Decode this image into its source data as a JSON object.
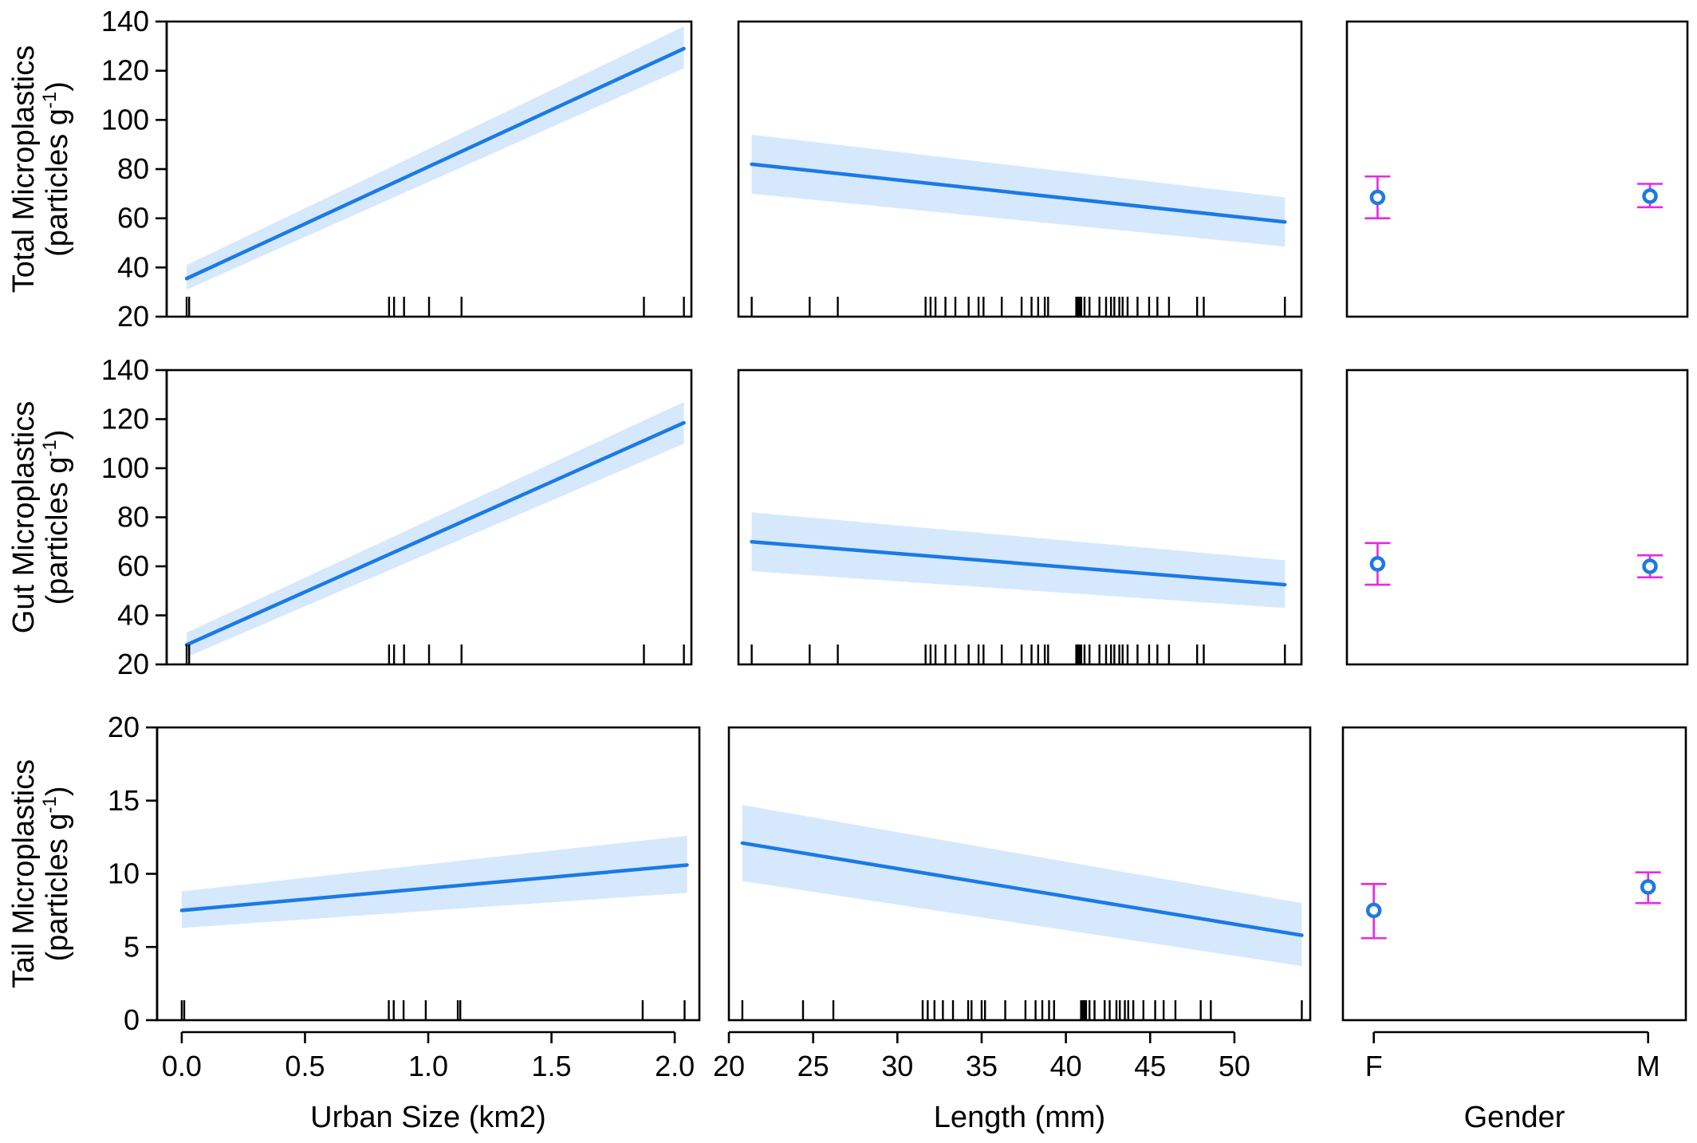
{
  "colors": {
    "line": "#1a7ae6",
    "band": "#d6e8fc",
    "point": "#1a7ae6",
    "errorbar": "#e629e6",
    "frame": "#000000"
  },
  "xaxes": {
    "urban": {
      "label": "Urban Size (km2)",
      "ticks": [
        0.0,
        0.5,
        1.0,
        1.5,
        2.0
      ],
      "tick_labels": [
        "0.0",
        "0.5",
        "1.0",
        "1.5",
        "2.0"
      ]
    },
    "length": {
      "label": "Length (mm)",
      "ticks": [
        20,
        25,
        30,
        35,
        40,
        45,
        50
      ],
      "tick_labels": [
        "20",
        "25",
        "30",
        "35",
        "40",
        "45",
        "50"
      ]
    },
    "gender": {
      "label": "Gender",
      "tick_labels": [
        "F",
        "M"
      ]
    }
  },
  "rows": [
    {
      "ylabel_line1": "Total Microplastics",
      "ylabel_line2": "(particles g",
      "ylabel_sup": "-1",
      "ylabel_close": ")",
      "yticks": [
        20,
        40,
        60,
        80,
        100,
        120,
        140
      ],
      "tick_labels": [
        "20",
        "40",
        "60",
        "80",
        "100",
        "120",
        "140"
      ]
    },
    {
      "ylabel_line1": "Gut Microplastics",
      "ylabel_line2": "(particles g",
      "ylabel_sup": "-1",
      "ylabel_close": ")",
      "yticks": [
        20,
        40,
        60,
        80,
        100,
        120,
        140
      ],
      "tick_labels": [
        "20",
        "40",
        "60",
        "80",
        "100",
        "120",
        "140"
      ]
    },
    {
      "ylabel_line1": "Tail Microplastics",
      "ylabel_line2": "(particles g",
      "ylabel_sup": "-1",
      "ylabel_close": ")",
      "yticks": [
        0,
        5,
        10,
        15,
        20
      ],
      "tick_labels": [
        "0",
        "5",
        "10",
        "15",
        "20"
      ]
    }
  ],
  "chart_data": [
    {
      "type": "line",
      "row": 0,
      "col": "urban",
      "xlim": [
        -0.05,
        2.05
      ],
      "ylim": [
        20,
        140
      ],
      "x": [
        0.03,
        2.02
      ],
      "y": [
        35.5,
        129
      ],
      "ci_lower": [
        31,
        121
      ],
      "ci_upper": [
        41,
        138
      ],
      "rug": [
        0.03,
        0.04,
        0.84,
        0.86,
        0.9,
        1.0,
        1.13,
        1.86,
        2.02
      ]
    },
    {
      "type": "line",
      "row": 0,
      "col": "length",
      "xlim": [
        20.5,
        54.5
      ],
      "ylim": [
        20,
        140
      ],
      "x": [
        21.3,
        53.5
      ],
      "y": [
        82,
        58.5
      ],
      "ci_lower": [
        70,
        48.5
      ],
      "ci_upper": [
        94,
        68.5
      ],
      "rug": [
        21.3,
        24.8,
        26.5,
        31.8,
        32.1,
        32.4,
        33.0,
        33.6,
        34.4,
        35.0,
        35.3,
        36.4,
        37.6,
        38.2,
        38.6,
        39.0,
        39.2,
        40.9,
        41.0,
        41.1,
        41.2,
        41.4,
        41.7,
        42.3,
        42.7,
        43.0,
        43.2,
        43.5,
        43.7,
        44.0,
        44.6,
        45.3,
        45.8,
        46.5,
        48.2,
        48.6,
        53.5
      ]
    },
    {
      "type": "scatter",
      "row": 0,
      "col": "gender",
      "categories": [
        "F",
        "M"
      ],
      "ylim": [
        20,
        140
      ],
      "values": [
        68.5,
        69
      ],
      "lower": [
        60,
        64.5
      ],
      "upper": [
        77,
        74
      ]
    },
    {
      "type": "line",
      "row": 1,
      "col": "urban",
      "xlim": [
        -0.05,
        2.05
      ],
      "ylim": [
        20,
        140
      ],
      "x": [
        0.03,
        2.02
      ],
      "y": [
        28,
        118.5
      ],
      "ci_lower": [
        23,
        110
      ],
      "ci_upper": [
        33,
        127
      ],
      "rug": [
        0.03,
        0.04,
        0.84,
        0.86,
        0.9,
        1.0,
        1.13,
        1.86,
        2.02
      ]
    },
    {
      "type": "line",
      "row": 1,
      "col": "length",
      "xlim": [
        20.5,
        54.5
      ],
      "ylim": [
        20,
        140
      ],
      "x": [
        21.3,
        53.5
      ],
      "y": [
        70,
        52.5
      ],
      "ci_lower": [
        58,
        43
      ],
      "ci_upper": [
        82,
        62.5
      ],
      "rug": [
        21.3,
        24.8,
        26.5,
        31.8,
        32.1,
        32.4,
        33.0,
        33.6,
        34.4,
        35.0,
        35.3,
        36.4,
        37.6,
        38.2,
        38.6,
        39.0,
        39.2,
        40.9,
        41.0,
        41.1,
        41.2,
        41.4,
        41.7,
        42.3,
        42.7,
        43.0,
        43.2,
        43.5,
        43.7,
        44.0,
        44.6,
        45.3,
        45.8,
        46.5,
        48.2,
        48.6,
        53.5
      ]
    },
    {
      "type": "scatter",
      "row": 1,
      "col": "gender",
      "categories": [
        "F",
        "M"
      ],
      "ylim": [
        20,
        140
      ],
      "values": [
        61,
        60
      ],
      "lower": [
        52.5,
        55.5
      ],
      "upper": [
        69.5,
        64.5
      ]
    },
    {
      "type": "line",
      "row": 2,
      "col": "urban",
      "xlim": [
        -0.1,
        2.1
      ],
      "ylim": [
        0,
        20
      ],
      "x": [
        0.0,
        2.05
      ],
      "y": [
        7.5,
        10.6
      ],
      "ci_lower": [
        6.3,
        8.7
      ],
      "ci_upper": [
        8.8,
        12.6
      ],
      "rug": [
        0.0,
        0.01,
        0.84,
        0.86,
        0.9,
        0.99,
        1.12,
        1.13,
        1.87,
        2.04
      ]
    },
    {
      "type": "line",
      "row": 2,
      "col": "length",
      "xlim": [
        20,
        54.5
      ],
      "ylim": [
        0,
        20
      ],
      "x": [
        20.8,
        54.0
      ],
      "y": [
        12.1,
        5.8
      ],
      "ci_lower": [
        9.5,
        3.7
      ],
      "ci_upper": [
        14.7,
        8.0
      ],
      "rug": [
        20.8,
        24.4,
        26.2,
        31.5,
        31.8,
        32.2,
        32.7,
        33.3,
        34.2,
        34.4,
        35.0,
        35.2,
        36.4,
        37.6,
        38.2,
        38.6,
        39.0,
        39.3,
        40.9,
        41.0,
        41.1,
        41.2,
        41.4,
        41.7,
        42.3,
        42.6,
        43.0,
        43.2,
        43.5,
        43.7,
        44.0,
        44.6,
        45.3,
        45.8,
        46.5,
        48.0,
        48.6,
        54.0
      ]
    },
    {
      "type": "scatter",
      "row": 2,
      "col": "gender",
      "categories": [
        "F",
        "M"
      ],
      "ylim": [
        0,
        20
      ],
      "values": [
        7.5,
        9.1
      ],
      "lower": [
        5.6,
        8.0
      ],
      "upper": [
        9.3,
        10.1
      ]
    }
  ]
}
